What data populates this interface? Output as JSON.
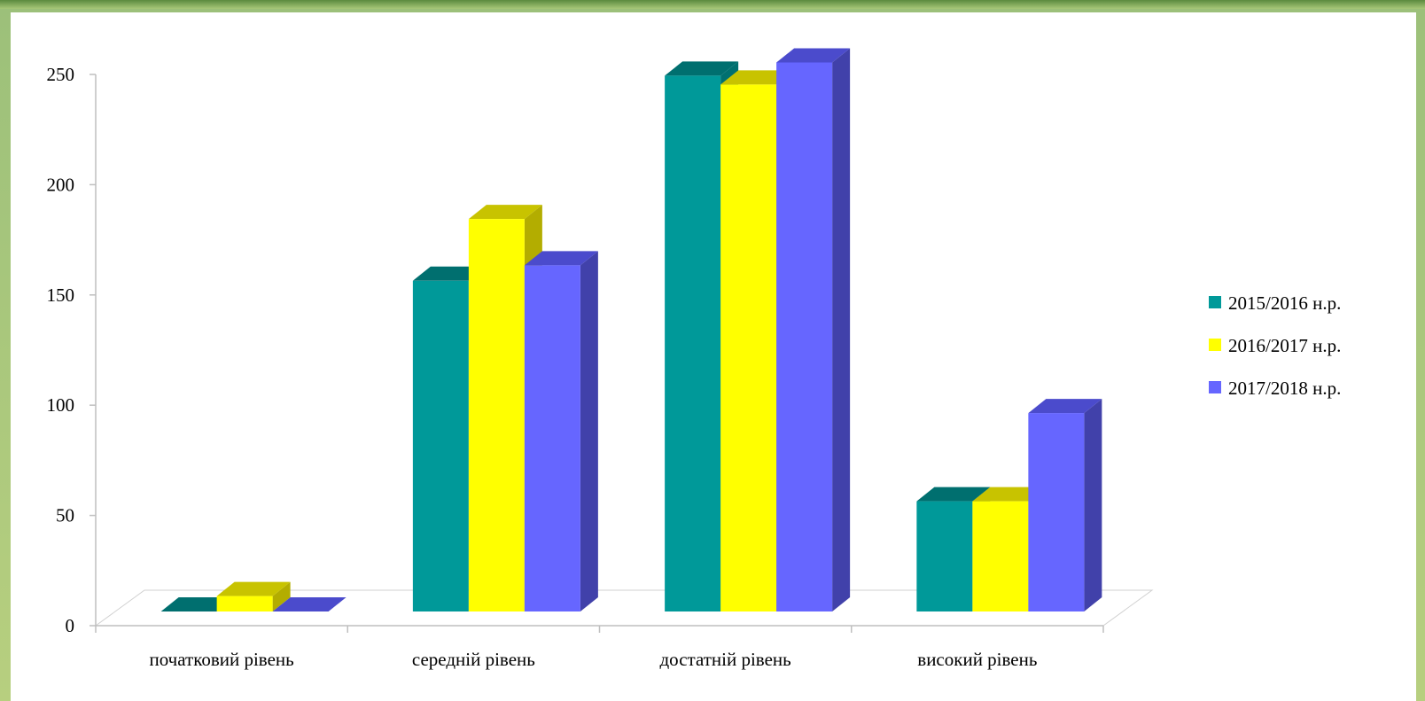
{
  "chart_data": {
    "type": "bar",
    "categories": [
      "початковий рівень",
      "середній рівень",
      "достатній рівень",
      "високий рівень"
    ],
    "series": [
      {
        "name": "2015/2016 н.р.",
        "values": [
          0,
          150,
          243,
          50
        ],
        "color": "#009999",
        "top_color": "#006f6f",
        "side_color": "#007070"
      },
      {
        "name": "2016/2017 н.р.",
        "values": [
          7,
          178,
          239,
          50
        ],
        "color": "#ffff00",
        "top_color": "#c8c300",
        "side_color": "#b3ad00"
      },
      {
        "name": "2017/2018 н.р.",
        "values": [
          0,
          157,
          249,
          90
        ],
        "color": "#6666ff",
        "top_color": "#4b4bcc",
        "side_color": "#4141aa"
      }
    ],
    "yticks": [
      0,
      50,
      100,
      150,
      200,
      250
    ],
    "ylim": [
      0,
      250
    ],
    "grid": false,
    "legend_position": "right",
    "chart_style": "3d-clustered-column"
  }
}
